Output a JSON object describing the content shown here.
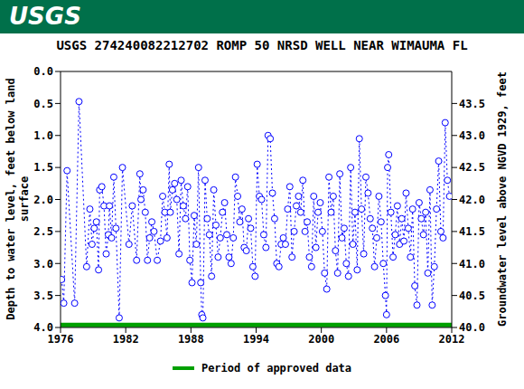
{
  "logo_text": "USGS",
  "chart_data": {
    "type": "line",
    "title": "USGS 274240082212702 ROMP 50 NRSD WELL NEAR WIMAUMA FL",
    "x_label": null,
    "y_label": "Depth to water level, feet below land surface",
    "y2_label": "Groundwater level above NGVD 1929, feet",
    "xlim": [
      1976,
      2012
    ],
    "xticks": [
      1976,
      1982,
      1988,
      1994,
      2000,
      2006,
      2012
    ],
    "ylim": [
      4,
      0
    ],
    "yticks": [
      {
        "value": 0,
        "label": "0.0"
      },
      {
        "value": 0.5,
        "label": "0.5"
      },
      {
        "value": 1,
        "label": "1.0"
      },
      {
        "value": 1.5,
        "label": "1.5"
      },
      {
        "value": 2,
        "label": "2.0"
      },
      {
        "value": 2.5,
        "label": "2.5"
      },
      {
        "value": 3,
        "label": "3.0"
      },
      {
        "value": 3.5,
        "label": "3.5"
      },
      {
        "value": 4,
        "label": "4.0"
      }
    ],
    "y2lim": [
      40,
      44
    ],
    "y2ticks": [
      {
        "value": 40,
        "label": "40.0"
      },
      {
        "value": 40.5,
        "label": "40.5"
      },
      {
        "value": 41,
        "label": "41.0"
      },
      {
        "value": 41.5,
        "label": "41.5"
      },
      {
        "value": 42,
        "label": "42.0"
      },
      {
        "value": 42.5,
        "label": "42.5"
      },
      {
        "value": 43,
        "label": "43.0"
      },
      {
        "value": 43.5,
        "label": "43.5"
      }
    ],
    "grid": false,
    "legend": "bottom",
    "series": [
      {
        "color": "#0000ff",
        "marker": "circle",
        "line_style": "dotted",
        "x": [
          1976.1,
          1976.3,
          1976.6,
          1977.3,
          1977.7,
          1978.4,
          1978.7,
          1978.9,
          1979.1,
          1979.3,
          1979.5,
          1979.6,
          1979.8,
          1980.0,
          1980.2,
          1980.4,
          1980.5,
          1980.7,
          1980.9,
          1981.1,
          1981.4,
          1981.7,
          1982.3,
          1982.6,
          1983.0,
          1983.3,
          1983.4,
          1983.6,
          1983.8,
          1984.0,
          1984.2,
          1984.4,
          1984.6,
          1984.9,
          1985.2,
          1985.4,
          1985.6,
          1985.8,
          1986.0,
          1986.1,
          1986.3,
          1986.5,
          1986.7,
          1986.9,
          1987.1,
          1987.3,
          1987.5,
          1987.7,
          1987.9,
          1988.1,
          1988.3,
          1988.5,
          1988.7,
          1988.9,
          1989.0,
          1989.1,
          1989.3,
          1989.5,
          1989.7,
          1989.9,
          1990.1,
          1990.3,
          1990.5,
          1990.7,
          1990.9,
          1991.1,
          1991.3,
          1991.5,
          1991.7,
          1991.9,
          1992.1,
          1992.3,
          1992.5,
          1992.7,
          1992.9,
          1993.1,
          1993.3,
          1993.5,
          1993.7,
          1993.9,
          1994.1,
          1994.3,
          1994.5,
          1994.7,
          1994.9,
          1995.1,
          1995.3,
          1995.5,
          1995.7,
          1995.9,
          1996.1,
          1996.3,
          1996.5,
          1996.7,
          1996.9,
          1997.1,
          1997.3,
          1997.5,
          1997.7,
          1997.9,
          1998.1,
          1998.3,
          1998.5,
          1998.7,
          1998.9,
          1999.1,
          1999.3,
          1999.5,
          1999.7,
          1999.9,
          2000.1,
          2000.3,
          2000.5,
          2000.7,
          2000.9,
          2001.1,
          2001.3,
          2001.5,
          2001.7,
          2001.9,
          2002.1,
          2002.3,
          2002.5,
          2002.7,
          2002.9,
          2003.1,
          2003.3,
          2003.5,
          2003.7,
          2003.9,
          2004.1,
          2004.3,
          2004.5,
          2004.7,
          2004.9,
          2005.1,
          2005.3,
          2005.5,
          2005.7,
          2005.9,
          2006.0,
          2006.1,
          2006.2,
          2006.4,
          2006.6,
          2006.8,
          2007.0,
          2007.2,
          2007.4,
          2007.6,
          2007.8,
          2008.0,
          2008.2,
          2008.4,
          2008.6,
          2008.8,
          2009.0,
          2009.2,
          2009.4,
          2009.6,
          2009.8,
          2010.0,
          2010.2,
          2010.4,
          2010.6,
          2010.8,
          2011.0,
          2011.2,
          2011.4,
          2011.6,
          2011.8
        ],
        "values": [
          3.25,
          3.62,
          1.55,
          3.62,
          0.47,
          3.05,
          2.15,
          2.7,
          2.45,
          2.35,
          3.1,
          1.85,
          1.8,
          2.1,
          2.85,
          2.55,
          2.1,
          2.6,
          1.65,
          2.45,
          3.85,
          1.5,
          2.7,
          2.1,
          2.95,
          1.6,
          2.0,
          1.85,
          2.2,
          2.95,
          2.6,
          2.35,
          2.5,
          2.95,
          2.65,
          1.95,
          2.2,
          2.6,
          1.45,
          2.2,
          1.85,
          1.75,
          2.0,
          2.85,
          1.7,
          2.1,
          2.3,
          1.8,
          2.95,
          3.3,
          2.25,
          2.7,
          1.5,
          3.3,
          3.8,
          3.85,
          1.7,
          2.3,
          2.55,
          3.2,
          1.85,
          2.4,
          2.9,
          2.6,
          2.2,
          2.05,
          2.55,
          2.9,
          3.0,
          2.6,
          1.65,
          1.95,
          2.35,
          2.15,
          2.75,
          2.8,
          2.3,
          2.45,
          3.05,
          3.2,
          1.45,
          1.95,
          2.0,
          2.55,
          2.75,
          1.0,
          1.05,
          1.9,
          2.3,
          3.0,
          3.05,
          2.7,
          2.6,
          2.7,
          2.15,
          1.8,
          2.9,
          2.5,
          2.1,
          1.95,
          2.2,
          1.7,
          2.5,
          2.35,
          2.9,
          3.05,
          1.95,
          2.75,
          2.2,
          2.05,
          2.5,
          3.15,
          3.4,
          1.65,
          2.2,
          1.95,
          2.8,
          3.15,
          1.6,
          2.6,
          2.45,
          3.0,
          3.2,
          1.5,
          2.7,
          2.2,
          3.1,
          1.05,
          2.15,
          2.85,
          1.65,
          1.9,
          2.3,
          2.45,
          3.05,
          2.6,
          1.95,
          2.35,
          3.0,
          3.5,
          3.8,
          1.5,
          1.3,
          2.2,
          2.9,
          2.55,
          2.1,
          2.7,
          2.3,
          2.65,
          1.9,
          2.45,
          2.9,
          2.15,
          3.35,
          3.65,
          2.05,
          2.3,
          2.55,
          2.2,
          3.15,
          1.85,
          3.65,
          3.05,
          2.15,
          1.4,
          2.5,
          2.6,
          0.8,
          1.7,
          1.95
        ]
      },
      {
        "name": "Period of approved data",
        "color": "#00a000",
        "marker": "none",
        "line_style": "solid",
        "x": [
          1976,
          2012
        ],
        "values": [
          3.96,
          3.96
        ]
      }
    ]
  }
}
